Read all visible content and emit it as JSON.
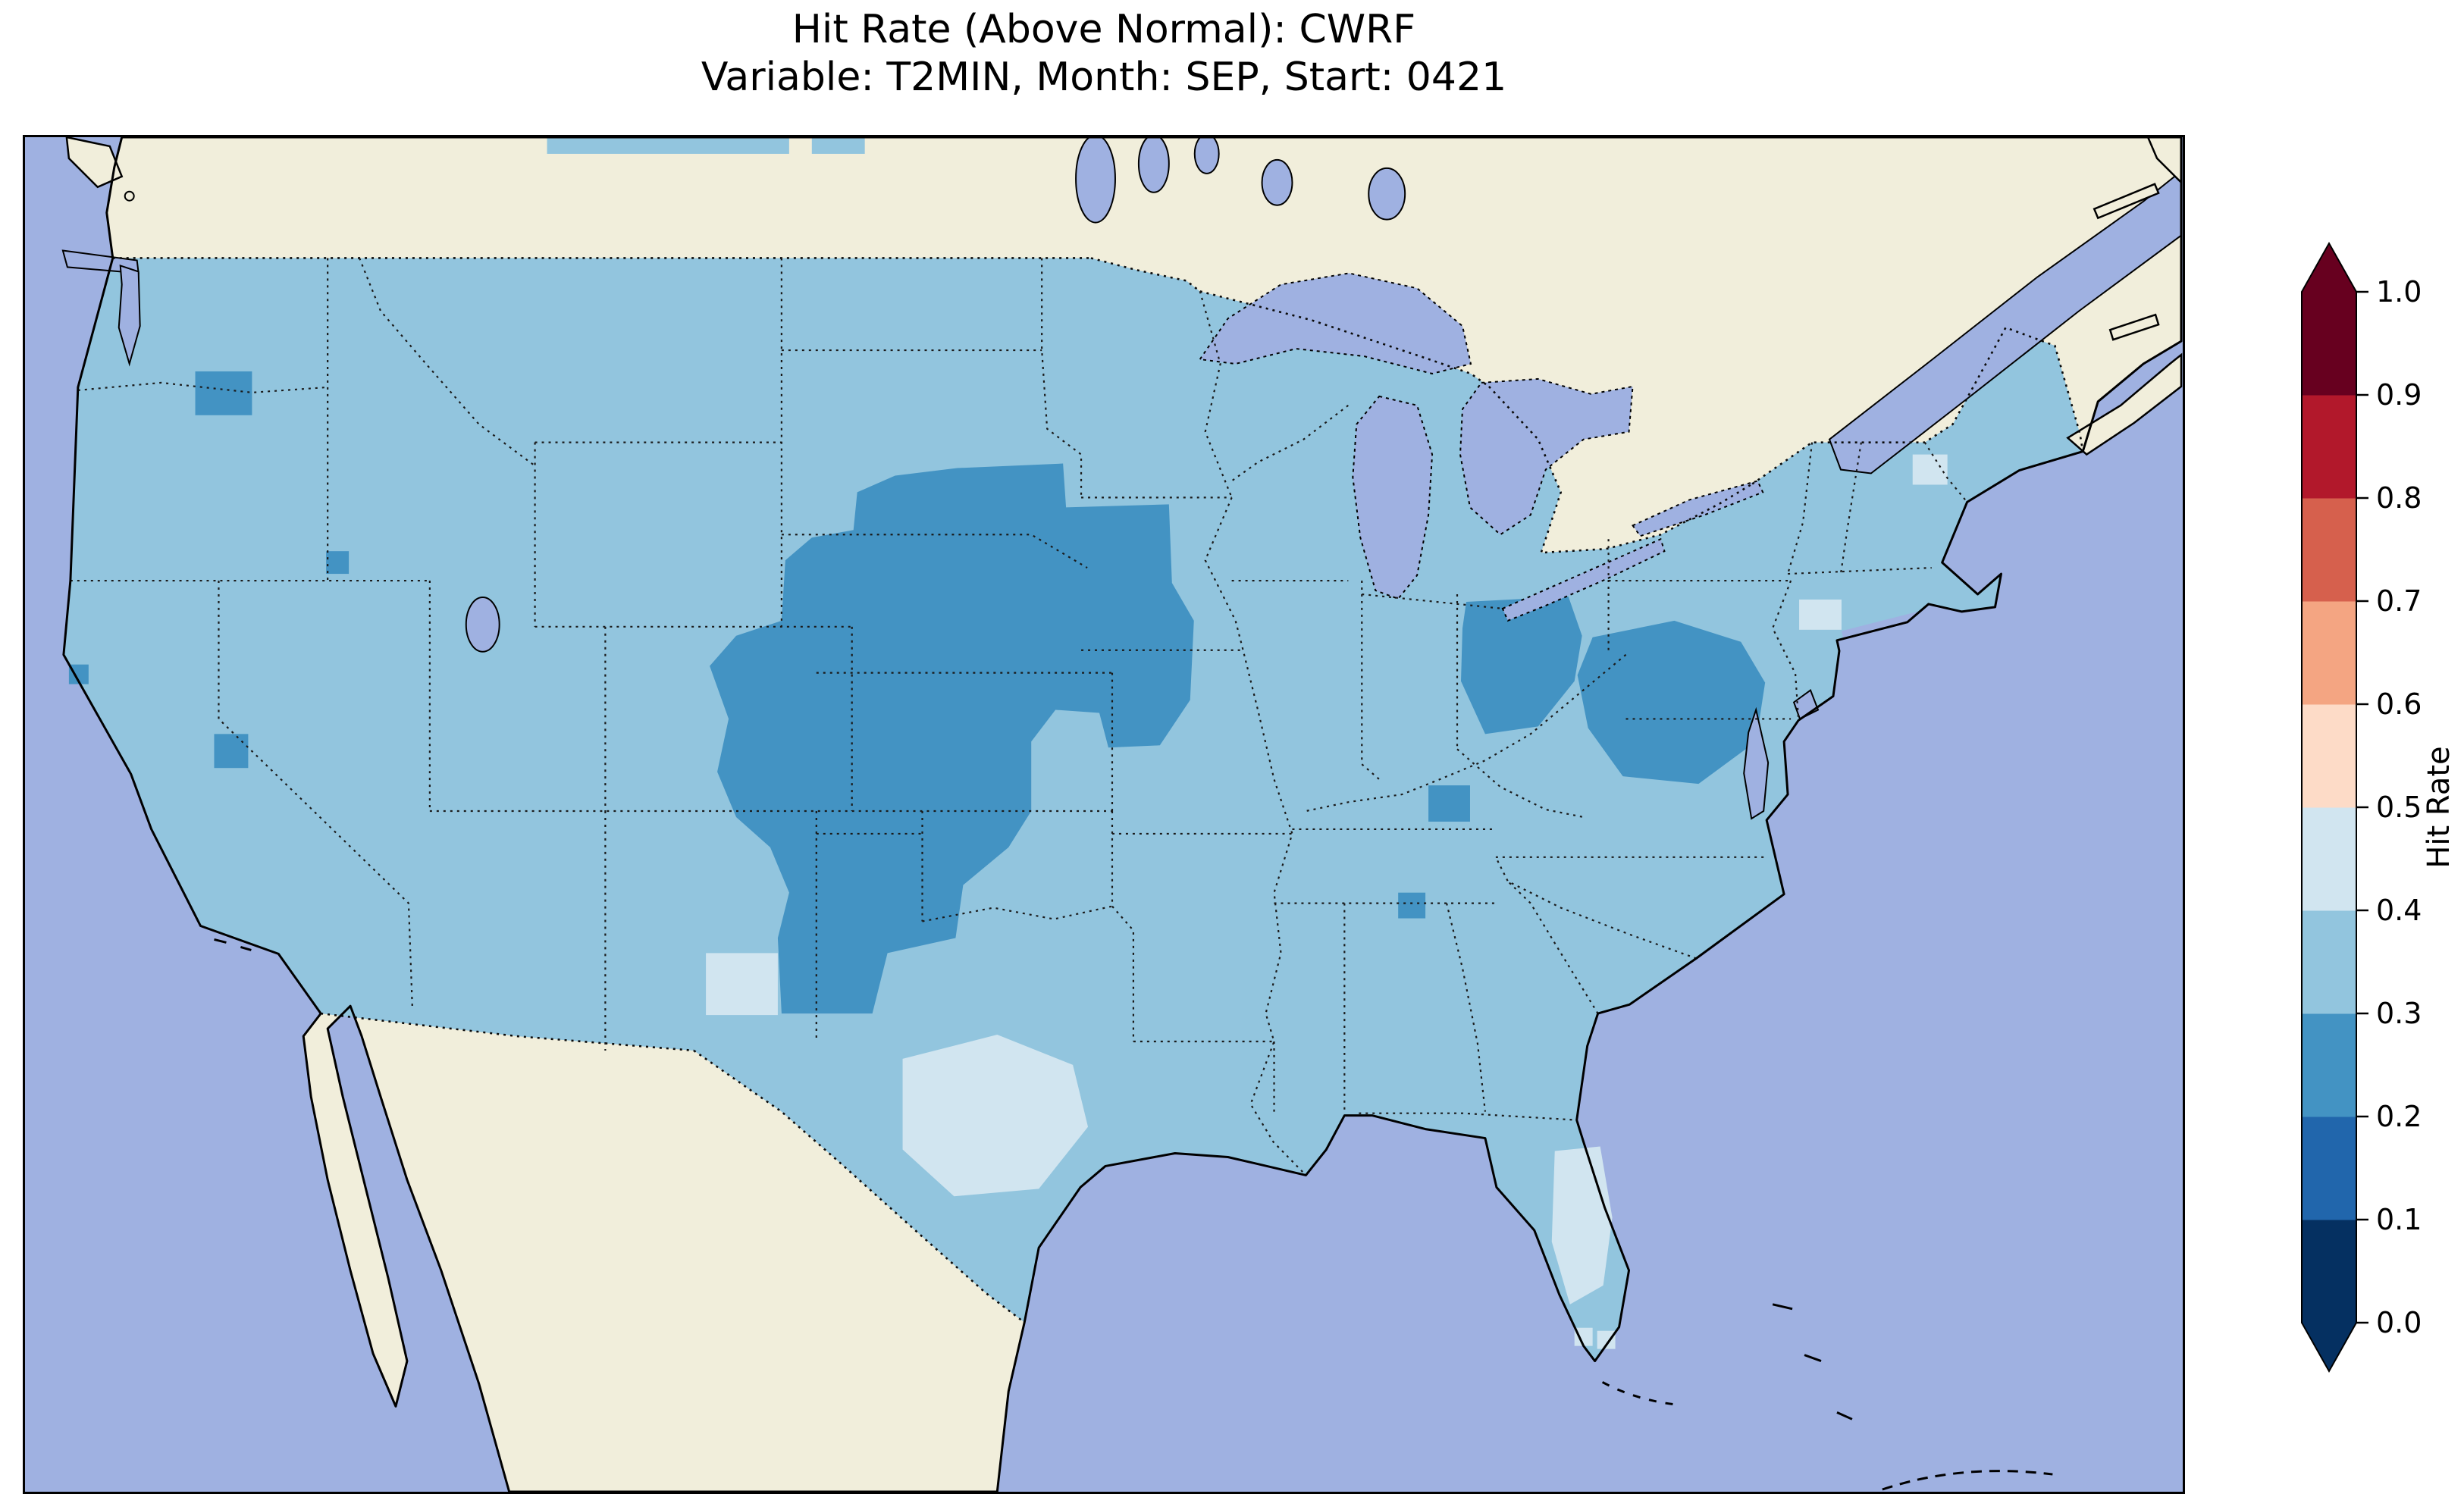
{
  "figure": {
    "background": "#ffffff"
  },
  "title": {
    "line1": "Hit Rate (Above Normal): CWRF",
    "line2": "Variable: T2MIN, Month: SEP, Start: 0421"
  },
  "chart_data": {
    "type": "heatmap",
    "subtype": "gridded geographic forecast-verification map (CONUS)",
    "title": "Hit Rate (Above Normal): CWRF",
    "subtitle": "Variable: T2MIN, Month: SEP, Start: 0421",
    "model": "CWRF",
    "variable": "T2MIN",
    "month": "SEP",
    "start_date": "0421",
    "metric": "Hit Rate (Above Normal)",
    "region_shown": "Contiguous United States with surrounding Canada, Mexico, Atlantic and Pacific",
    "colorbar": {
      "label": "Hit Rate",
      "orientation": "vertical",
      "extend": "both",
      "colormap": "RdBu_r",
      "ticks": [
        "0.0",
        "0.1",
        "0.2",
        "0.3",
        "0.4",
        "0.5",
        "0.6",
        "0.7",
        "0.8",
        "0.9",
        "1.0"
      ],
      "bin_edges": [
        0.0,
        0.1,
        0.2,
        0.3,
        0.4,
        0.5,
        0.6,
        0.7,
        0.8,
        0.9,
        1.0
      ],
      "colors": [
        "#053061",
        "#2166ac",
        "#4393c3",
        "#92c5de",
        "#d1e5f0",
        "#fddbc7",
        "#f4a582",
        "#d6604d",
        "#b2182b",
        "#67001f"
      ],
      "under_color": "#053061",
      "over_color": "#67001f"
    },
    "bin_colors": {
      "0.2-0.3": "#4393c3",
      "0.3-0.4": "#92c5de",
      "0.4-0.5": "#d1e5f0"
    },
    "map_colors": {
      "ocean": "#9fb1e1",
      "land": "#f1eedb",
      "lake": "#9fb1e1",
      "coastline": "#000000",
      "state_border": "#1a1a1a"
    },
    "regions": [
      {
        "name": "most of CONUS (background field)",
        "value_bin": "0.3-0.4",
        "approx_value": 0.35
      },
      {
        "name": "central Great Plains: E Colorado, Nebraska, Kansas, SE South Dakota, W Iowa, N Missouri, Oklahoma & Texas panhandles, NM/TX border",
        "value_bin": "0.2-0.3",
        "approx_value": 0.25
      },
      {
        "name": "Ohio / lower Great Lakes patch",
        "value_bin": "0.2-0.3",
        "approx_value": 0.25
      },
      {
        "name": "Mid-Atlantic patch: West Virginia, Virginia, Maryland",
        "value_bin": "0.2-0.3",
        "approx_value": 0.25
      },
      {
        "name": "small patch central Washington / Pacific Northwest",
        "value_bin": "0.2-0.3",
        "approx_value": 0.25
      },
      {
        "name": "small patch Sierra Nevada (CA/NV border)",
        "value_bin": "0.2-0.3",
        "approx_value": 0.25
      },
      {
        "name": "small patches Kentucky / Tennessee",
        "value_bin": "0.2-0.3",
        "approx_value": 0.25
      },
      {
        "name": "central Texas patch",
        "value_bin": "0.4-0.5",
        "approx_value": 0.45
      },
      {
        "name": "SE New Mexico spot",
        "value_bin": "0.4-0.5",
        "approx_value": 0.45
      },
      {
        "name": "central Florida peninsula strip",
        "value_bin": "0.4-0.5",
        "approx_value": 0.45
      },
      {
        "name": "New York City metro spot",
        "value_bin": "0.4-0.5",
        "approx_value": 0.45
      },
      {
        "name": "northern New England spot",
        "value_bin": "0.4-0.5",
        "approx_value": 0.45
      },
      {
        "name": "small cells south Florida",
        "value_bin": "0.4-0.5",
        "approx_value": 0.45
      }
    ]
  }
}
